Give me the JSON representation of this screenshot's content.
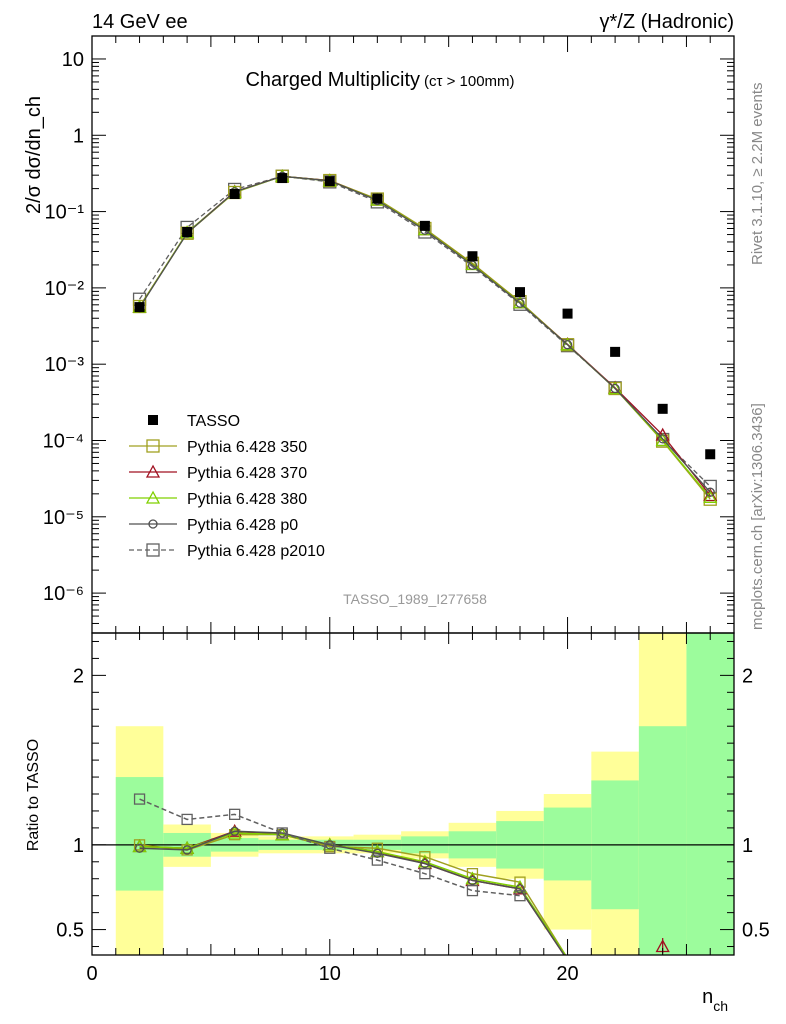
{
  "header": {
    "left": "14 GeV ee",
    "right": "γ*/Z (Hadronic)"
  },
  "side": {
    "rivet": "Rivet 3.1.10, ≥ 2.2M events",
    "mcplots": "mcplots.cern.ch [arXiv:1306.3436]"
  },
  "chart_data": [
    {
      "type": "scatter",
      "title": "Charged Multiplicity",
      "subtitle": "(cτ > 100mm)",
      "watermark": "TASSO_1989_I277658",
      "ylabel": "2/σ dσ/dn_ch",
      "yscale": "log",
      "ylim": [
        3e-07,
        20
      ],
      "xlim": [
        0,
        27
      ],
      "y_ticks": [
        {
          "value": 10,
          "label": "10"
        },
        {
          "value": 1,
          "label": "1"
        },
        {
          "value": 0.1,
          "label": "10⁻¹"
        },
        {
          "value": 0.01,
          "label": "10⁻²"
        },
        {
          "value": 0.001,
          "label": "10⁻³"
        },
        {
          "value": 0.0001,
          "label": "10⁻⁴"
        },
        {
          "value": 1e-05,
          "label": "10⁻⁵"
        },
        {
          "value": 1e-06,
          "label": "10⁻⁶"
        }
      ],
      "legend_position": "bottom-left",
      "x": [
        2,
        4,
        6,
        8,
        10,
        12,
        14,
        16,
        18,
        20,
        22,
        24,
        26
      ],
      "series": [
        {
          "name": "TASSO",
          "color": "#000000",
          "marker": "filled-square",
          "line": "none",
          "values": [
            0.0056,
            0.054,
            0.17,
            0.275,
            0.25,
            0.148,
            0.065,
            0.026,
            0.0088,
            0.0046,
            0.00145,
            0.00026,
            6.6e-05
          ]
        },
        {
          "name": "Pythia 6.428 350",
          "color": "#a0a020",
          "marker": "open-square",
          "line": "solid",
          "values": [
            0.0057,
            0.052,
            0.178,
            0.29,
            0.255,
            0.146,
            0.06,
            0.021,
            0.0066,
            0.0018,
            0.00048,
            9.8e-05,
            1.7e-05
          ]
        },
        {
          "name": "Pythia 6.428 370",
          "color": "#a01020",
          "marker": "open-triangle",
          "line": "solid",
          "values": [
            0.0056,
            0.053,
            0.182,
            0.29,
            0.255,
            0.142,
            0.058,
            0.0205,
            0.0064,
            0.00182,
            0.00049,
            0.000118,
            1.9e-05
          ]
        },
        {
          "name": "Pythia 6.428 380",
          "color": "#80d000",
          "marker": "open-triangle",
          "line": "solid",
          "values": [
            0.0056,
            0.053,
            0.18,
            0.29,
            0.253,
            0.142,
            0.058,
            0.0203,
            0.0064,
            0.0018,
            0.00048,
            0.0001,
            1.8e-05
          ]
        },
        {
          "name": "Pythia 6.428 p0",
          "color": "#505050",
          "marker": "open-circle",
          "line": "solid",
          "values": [
            0.0055,
            0.052,
            0.182,
            0.29,
            0.253,
            0.14,
            0.057,
            0.0198,
            0.0063,
            0.0018,
            0.00048,
            0.000105,
            2.1e-05
          ]
        },
        {
          "name": "Pythia 6.428 p2010",
          "color": "#606060",
          "marker": "open-square",
          "line": "dashed",
          "values": [
            0.0071,
            0.062,
            0.195,
            0.29,
            0.245,
            0.134,
            0.054,
            0.019,
            0.0061,
            0.00175,
            0.00049,
            0.000103,
            2.5e-05
          ]
        }
      ]
    },
    {
      "type": "scatter",
      "ylabel": "Ratio to TASSO",
      "xlabel": "n_ch",
      "ylim": [
        0.35,
        2.25
      ],
      "xlim": [
        0,
        27
      ],
      "x_ticks": [
        0,
        10,
        20
      ],
      "y_ticks": [
        0.5,
        1,
        2
      ],
      "reference_line": 1,
      "uncertainty_bands": [
        {
          "x": [
            1,
            3
          ],
          "stat": [
            0.73,
            1.4
          ],
          "total": [
            0.35,
            1.7
          ]
        },
        {
          "x": [
            3,
            5
          ],
          "stat": [
            0.93,
            1.07
          ],
          "total": [
            0.87,
            1.12
          ]
        },
        {
          "x": [
            5,
            7
          ],
          "stat": [
            0.96,
            1.04
          ],
          "total": [
            0.93,
            1.07
          ]
        },
        {
          "x": [
            7,
            9
          ],
          "stat": [
            0.97,
            1.03
          ],
          "total": [
            0.95,
            1.05
          ]
        },
        {
          "x": [
            9,
            11
          ],
          "stat": [
            0.97,
            1.03
          ],
          "total": [
            0.95,
            1.05
          ]
        },
        {
          "x": [
            11,
            13
          ],
          "stat": [
            0.97,
            1.03
          ],
          "total": [
            0.95,
            1.06
          ]
        },
        {
          "x": [
            13,
            15
          ],
          "stat": [
            0.95,
            1.05
          ],
          "total": [
            0.92,
            1.08
          ]
        },
        {
          "x": [
            15,
            17
          ],
          "stat": [
            0.92,
            1.08
          ],
          "total": [
            0.87,
            1.13
          ]
        },
        {
          "x": [
            17,
            19
          ],
          "stat": [
            0.86,
            1.14
          ],
          "total": [
            0.8,
            1.2
          ]
        },
        {
          "x": [
            19,
            21
          ],
          "stat": [
            0.79,
            1.22
          ],
          "total": [
            0.5,
            1.3
          ]
        },
        {
          "x": [
            21,
            23
          ],
          "stat": [
            0.62,
            1.38
          ],
          "total": [
            0.35,
            1.55
          ]
        },
        {
          "x": [
            23,
            25
          ],
          "stat": [
            0.35,
            1.7
          ],
          "total": [
            0.35,
            2.25
          ]
        },
        {
          "x": [
            25,
            27
          ],
          "stat": [
            0.35,
            2.25
          ],
          "total": [
            0.35,
            2.25
          ]
        }
      ],
      "x": [
        2,
        4,
        6,
        8,
        10,
        12,
        14,
        16,
        18,
        20,
        22,
        24,
        26
      ],
      "series": [
        {
          "name": "Pythia 6.428 350",
          "color": "#a0a020",
          "marker": "open-square",
          "line": "solid",
          "values": [
            1.0,
            0.97,
            1.06,
            1.06,
            0.99,
            0.98,
            0.93,
            0.83,
            0.78,
            0.33,
            null,
            null,
            null
          ]
        },
        {
          "name": "Pythia 6.428 370",
          "color": "#a01020",
          "marker": "open-triangle",
          "line": "solid",
          "values": [
            0.99,
            0.98,
            1.08,
            1.06,
            1.0,
            0.96,
            0.89,
            0.79,
            0.74,
            0.32,
            null,
            0.4,
            null
          ]
        },
        {
          "name": "Pythia 6.428 380",
          "color": "#80d000",
          "marker": "open-triangle",
          "line": "solid",
          "values": [
            0.99,
            0.98,
            1.07,
            1.06,
            1.0,
            0.96,
            0.9,
            0.8,
            0.75,
            0.33,
            null,
            null,
            null
          ]
        },
        {
          "name": "Pythia 6.428 p0",
          "color": "#505050",
          "marker": "open-circle",
          "line": "solid",
          "values": [
            0.98,
            0.97,
            1.08,
            1.07,
            1.0,
            0.95,
            0.89,
            0.79,
            0.74,
            0.32,
            null,
            null,
            null
          ]
        },
        {
          "name": "Pythia 6.428 p2010",
          "color": "#606060",
          "marker": "open-square",
          "line": "dashed",
          "values": [
            1.27,
            1.15,
            1.18,
            1.07,
            0.98,
            0.91,
            0.83,
            0.73,
            0.7,
            null,
            null,
            null,
            null
          ]
        }
      ]
    }
  ],
  "colors": {
    "band_stat": "#9cfc9c",
    "band_total": "#ffff99"
  }
}
